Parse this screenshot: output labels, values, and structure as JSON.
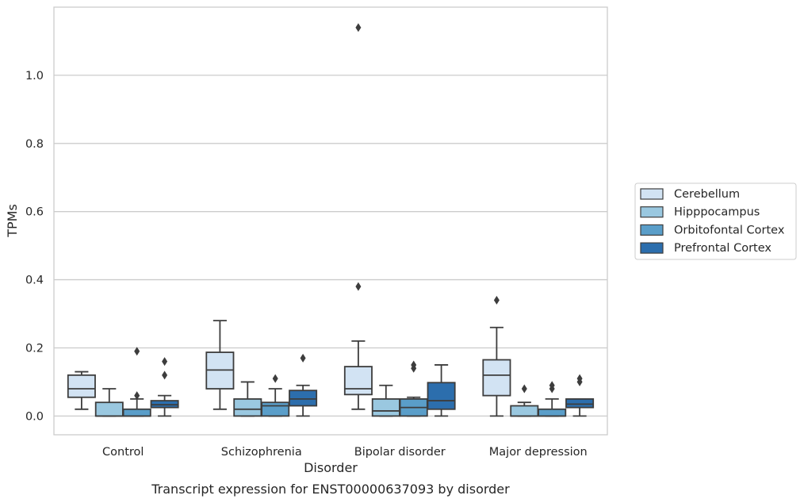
{
  "chart_data": {
    "type": "box",
    "title": "",
    "caption": "Transcript expression for ENST00000637093 by disorder",
    "xlabel": "Disorder",
    "ylabel": "TPMs",
    "ylim": [
      -0.055,
      1.2
    ],
    "yticks": [
      0.0,
      0.2,
      0.4,
      0.6,
      0.8,
      1.0
    ],
    "ytick_labels": [
      "0.0",
      "0.2",
      "0.4",
      "0.6",
      "0.8",
      "1.0"
    ],
    "grid": true,
    "legend_position": "right",
    "categories": [
      "Control",
      "Schizophrenia",
      "Bipolar disorder",
      "Major depression"
    ],
    "series": [
      {
        "name": "Cerebellum",
        "color": "#d2e3f3",
        "boxes": [
          {
            "whislo": 0.02,
            "q1": 0.055,
            "med": 0.08,
            "q3": 0.12,
            "whishi": 0.13,
            "fliers": []
          },
          {
            "whislo": 0.02,
            "q1": 0.08,
            "med": 0.135,
            "q3": 0.187,
            "whishi": 0.28,
            "fliers": []
          },
          {
            "whislo": 0.02,
            "q1": 0.063,
            "med": 0.08,
            "q3": 0.145,
            "whishi": 0.22,
            "fliers": [
              0.38,
              1.14
            ]
          },
          {
            "whislo": 0.0,
            "q1": 0.06,
            "med": 0.12,
            "q3": 0.165,
            "whishi": 0.26,
            "fliers": [
              0.34
            ]
          }
        ]
      },
      {
        "name": "Hipppocampus",
        "color": "#9ac8e0",
        "boxes": [
          {
            "whislo": 0.0,
            "q1": 0.0,
            "med": 0.0,
            "q3": 0.04,
            "whishi": 0.08,
            "fliers": []
          },
          {
            "whislo": 0.0,
            "q1": 0.0,
            "med": 0.02,
            "q3": 0.05,
            "whishi": 0.1,
            "fliers": []
          },
          {
            "whislo": 0.0,
            "q1": 0.0,
            "med": 0.015,
            "q3": 0.05,
            "whishi": 0.09,
            "fliers": []
          },
          {
            "whislo": 0.0,
            "q1": 0.0,
            "med": 0.0,
            "q3": 0.03,
            "whishi": 0.04,
            "fliers": [
              0.08
            ]
          }
        ]
      },
      {
        "name": "Orbitofontal Cortex",
        "color": "#5a9ec9",
        "boxes": [
          {
            "whislo": 0.0,
            "q1": 0.0,
            "med": 0.0,
            "q3": 0.02,
            "whishi": 0.05,
            "fliers": [
              0.06,
              0.19
            ]
          },
          {
            "whislo": 0.0,
            "q1": 0.0,
            "med": 0.03,
            "q3": 0.04,
            "whishi": 0.08,
            "fliers": [
              0.11
            ]
          },
          {
            "whislo": 0.0,
            "q1": 0.0,
            "med": 0.025,
            "q3": 0.05,
            "whishi": 0.055,
            "fliers": [
              0.14,
              0.15
            ]
          },
          {
            "whislo": 0.0,
            "q1": 0.0,
            "med": 0.0,
            "q3": 0.02,
            "whishi": 0.05,
            "fliers": [
              0.08,
              0.09
            ]
          }
        ]
      },
      {
        "name": "Prefrontal Cortex",
        "color": "#2c6ead",
        "boxes": [
          {
            "whislo": 0.0,
            "q1": 0.025,
            "med": 0.033,
            "q3": 0.045,
            "whishi": 0.06,
            "fliers": [
              0.12,
              0.16
            ]
          },
          {
            "whislo": 0.0,
            "q1": 0.03,
            "med": 0.05,
            "q3": 0.075,
            "whishi": 0.09,
            "fliers": [
              0.17
            ]
          },
          {
            "whislo": 0.0,
            "q1": 0.02,
            "med": 0.045,
            "q3": 0.098,
            "whishi": 0.15,
            "fliers": []
          },
          {
            "whislo": 0.0,
            "q1": 0.025,
            "med": 0.035,
            "q3": 0.05,
            "whishi": 0.05,
            "fliers": [
              0.1,
              0.11
            ]
          }
        ]
      }
    ]
  }
}
